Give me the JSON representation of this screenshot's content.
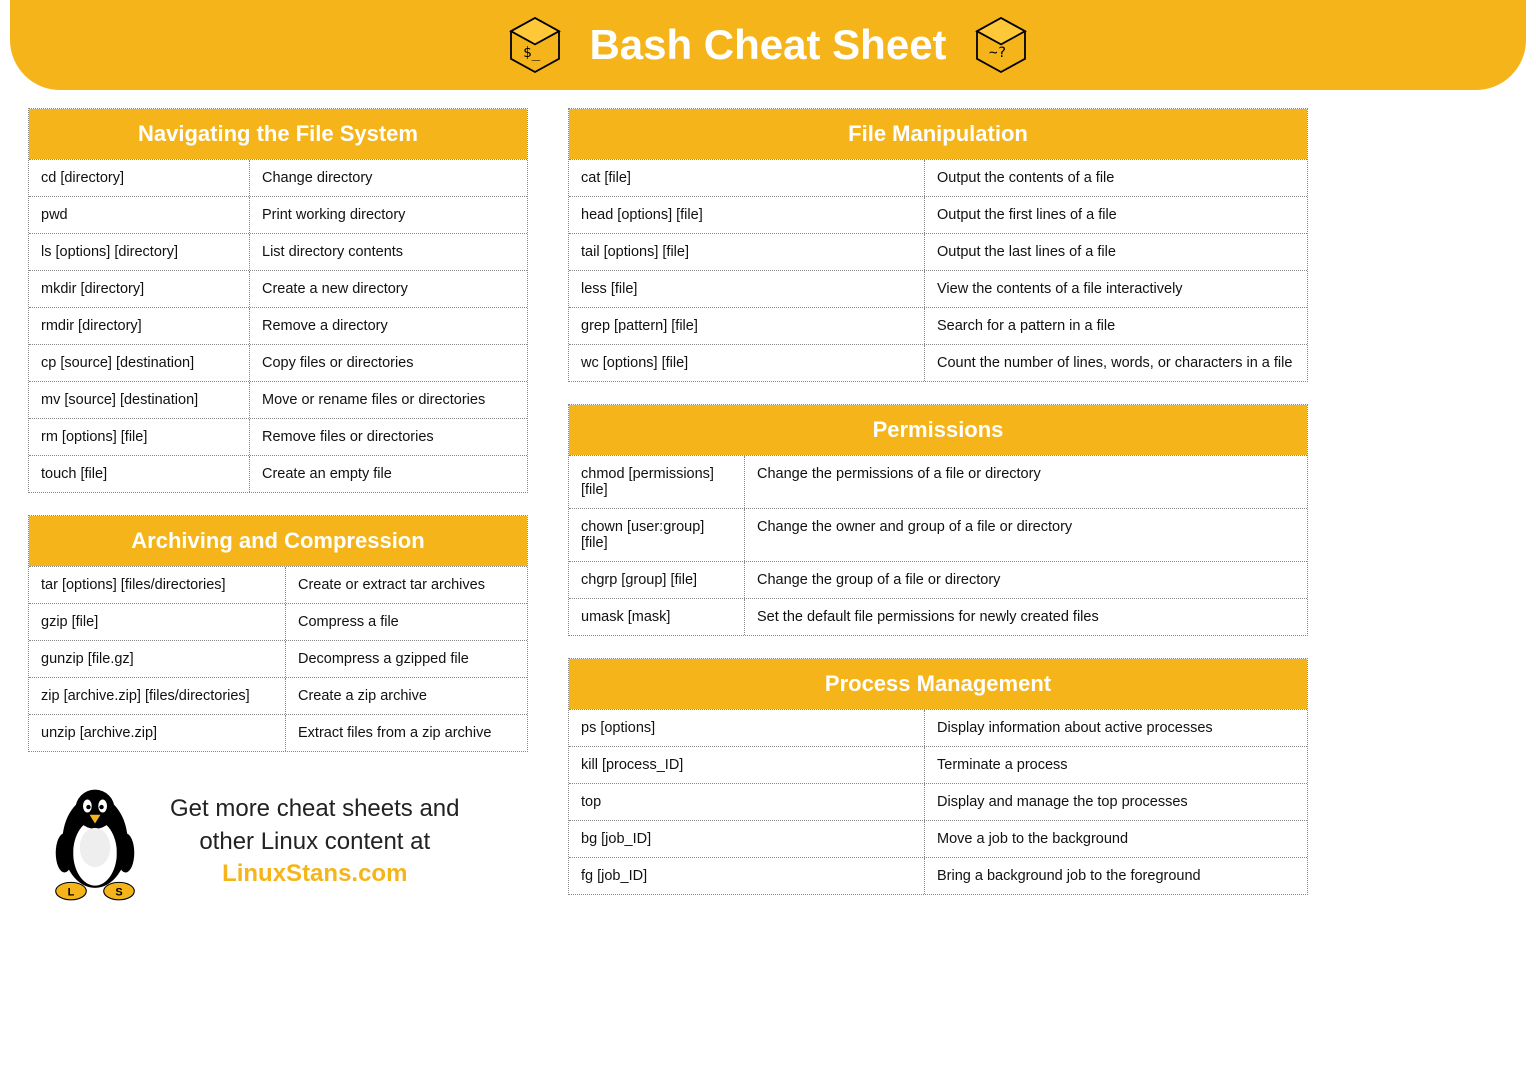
{
  "colors": {
    "accent": "#f5b51a",
    "header_text": "#ffffff",
    "body_text": "#111111",
    "border": "#888888",
    "background": "#ffffff"
  },
  "typography": {
    "title_fontsize": 42,
    "section_header_fontsize": 22,
    "cell_fontsize": 14.5,
    "promo_fontsize": 24
  },
  "banner": {
    "title": "Bash Cheat Sheet",
    "left_icon": "terminal-cube-icon",
    "right_icon": "terminal-cube-icon"
  },
  "layout": {
    "left_col_width": 500,
    "right_col_width": 740,
    "left_col1_width": 220,
    "archive_col1_width": 256,
    "file_col1_width": 355,
    "perm_col1_width": 175,
    "proc_col1_width": 355
  },
  "sections": {
    "navigating": {
      "title": "Navigating the File System",
      "col1_width": 220,
      "rows": [
        {
          "cmd": "cd [directory]",
          "desc": "Change directory"
        },
        {
          "cmd": "pwd",
          "desc": "Print working directory"
        },
        {
          "cmd": "ls [options] [directory]",
          "desc": "List directory contents"
        },
        {
          "cmd": "mkdir [directory]",
          "desc": "Create a new directory"
        },
        {
          "cmd": "rmdir [directory]",
          "desc": "Remove a directory"
        },
        {
          "cmd": "cp [source] [destination]",
          "desc": "Copy files or directories"
        },
        {
          "cmd": "mv [source] [destination]",
          "desc": "Move or rename files or directories"
        },
        {
          "cmd": "rm [options] [file]",
          "desc": "Remove files or directories"
        },
        {
          "cmd": "touch [file]",
          "desc": "Create an empty file"
        }
      ]
    },
    "archiving": {
      "title": "Archiving and Compression",
      "col1_width": 256,
      "rows": [
        {
          "cmd": "tar [options] [files/directories]",
          "desc": "Create or extract tar archives"
        },
        {
          "cmd": "gzip [file]",
          "desc": "Compress a file"
        },
        {
          "cmd": "gunzip [file.gz]",
          "desc": "Decompress a gzipped file"
        },
        {
          "cmd": "zip [archive.zip] [files/directories]",
          "desc": "Create a zip archive"
        },
        {
          "cmd": "unzip [archive.zip]",
          "desc": "Extract files from a zip archive"
        }
      ]
    },
    "file_manip": {
      "title": "File Manipulation",
      "col1_width": 355,
      "rows": [
        {
          "cmd": "cat [file]",
          "desc": "Output the contents of a file"
        },
        {
          "cmd": "head [options] [file]",
          "desc": "Output the first lines of a file"
        },
        {
          "cmd": "tail [options] [file]",
          "desc": "Output the last lines of a file"
        },
        {
          "cmd": "less [file]",
          "desc": "View the contents of a file interactively"
        },
        {
          "cmd": "grep [pattern] [file]",
          "desc": "Search for a pattern in a file"
        },
        {
          "cmd": "wc [options] [file]",
          "desc": "Count the number of lines, words, or characters in a file"
        }
      ]
    },
    "permissions": {
      "title": "Permissions",
      "col1_width": 175,
      "rows": [
        {
          "cmd": "chmod [permissions] [file]",
          "desc": "Change the permissions of a file or directory"
        },
        {
          "cmd": "chown [user:group] [file]",
          "desc": "Change the owner and group of a file or directory"
        },
        {
          "cmd": "chgrp [group] [file]",
          "desc": "Change the group of a file or directory"
        },
        {
          "cmd": "umask [mask]",
          "desc": "Set the default file permissions for newly created files"
        }
      ]
    },
    "process": {
      "title": "Process Management",
      "col1_width": 355,
      "rows": [
        {
          "cmd": "ps [options]",
          "desc": "Display information about active processes"
        },
        {
          "cmd": "kill [process_ID]",
          "desc": "Terminate a process"
        },
        {
          "cmd": "top",
          "desc": "Display and manage the top processes"
        },
        {
          "cmd": "bg [job_ID]",
          "desc": "Move a job to the background"
        },
        {
          "cmd": "fg [job_ID]",
          "desc": "Bring a background job to the foreground"
        }
      ]
    }
  },
  "promo": {
    "line1": "Get more cheat sheets and",
    "line2": "other Linux content at",
    "link": "LinuxStans.com",
    "mascot": "tux-penguin-icon"
  }
}
